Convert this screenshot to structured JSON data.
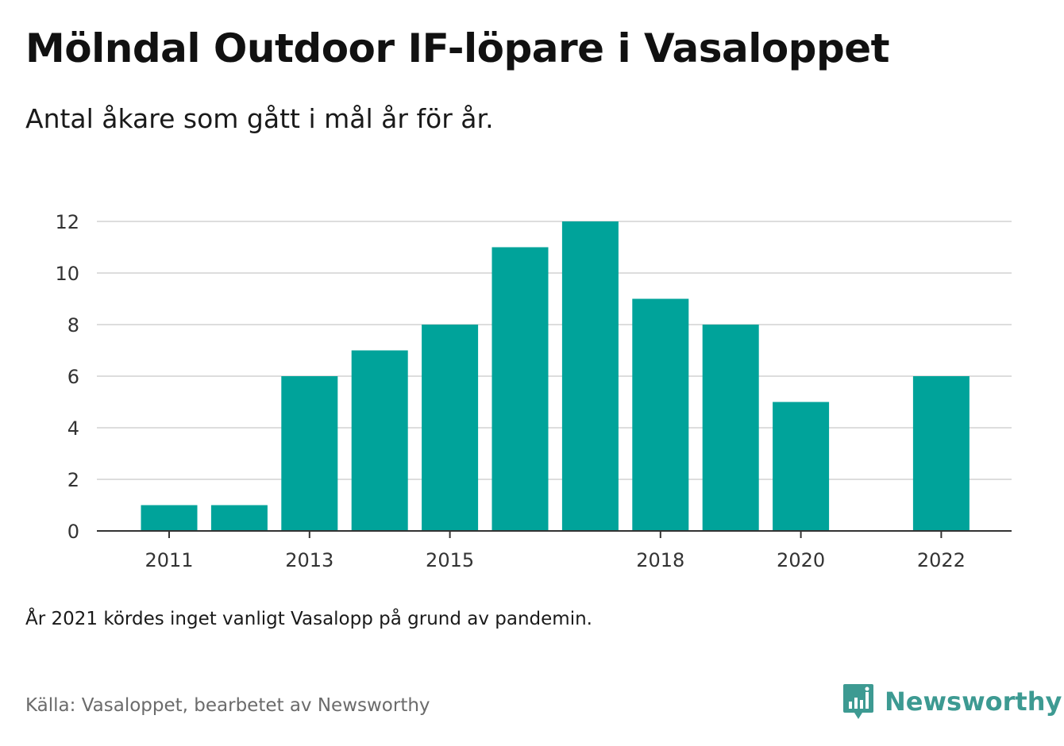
{
  "title": "Mölndal Outdoor IF-löpare i Vasaloppet",
  "subtitle": "Antal åkare som gått i mål år för år.",
  "note": "År 2021 kördes inget vanligt Vasalopp på grund av pandemin.",
  "source": "Källa: Vasaloppet, bearbetet av Newsworthy",
  "brand": {
    "name": "Newsworthy",
    "icon": "newsworthy-logo-icon",
    "color": "#3d9a92"
  },
  "chart_data": {
    "type": "bar",
    "x": [
      2011,
      2012,
      2013,
      2014,
      2015,
      2016,
      2017,
      2018,
      2019,
      2020,
      2021,
      2022
    ],
    "values": [
      1,
      1,
      6,
      7,
      8,
      11,
      12,
      9,
      8,
      5,
      null,
      6
    ],
    "x_tick_labels": [
      "2011",
      "2013",
      "2015",
      "2018",
      "2020",
      "2022"
    ],
    "y_ticks": [
      0,
      2,
      4,
      6,
      8,
      10,
      12
    ],
    "ylim": [
      0,
      12
    ],
    "grid": true,
    "bar_color": "#00a39a",
    "legend": "none"
  }
}
